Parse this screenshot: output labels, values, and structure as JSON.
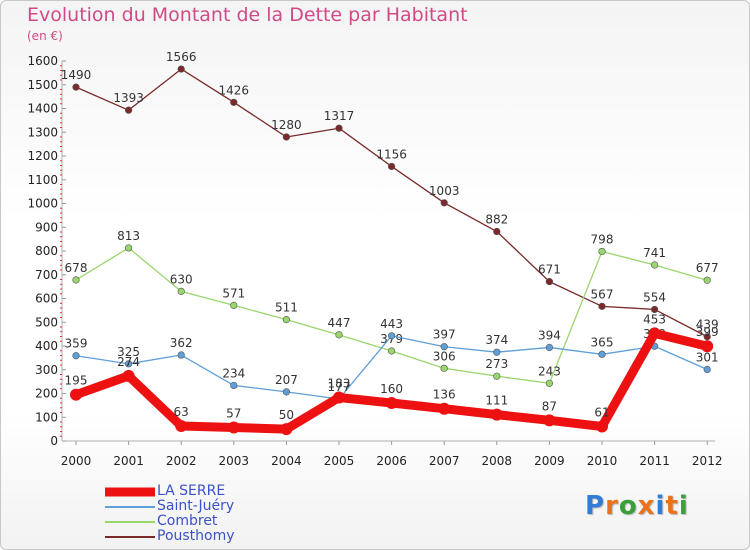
{
  "title": "Evolution du Montant de la Dette par Habitant",
  "subtitle": "(en €)",
  "logo": {
    "letters": [
      "P",
      "r",
      "o",
      "x",
      "i",
      "t",
      "i"
    ],
    "colors": [
      "#2f7fd6",
      "#e8731c",
      "#3b9f3b",
      "#e8731c",
      "#2f7fd6",
      "#e8731c",
      "#3b9f3b"
    ]
  },
  "chart_data": {
    "type": "line",
    "title": "Evolution du Montant de la Dette par Habitant",
    "ylabel": "(en €)",
    "x": [
      "2000",
      "2001",
      "2002",
      "2003",
      "2004",
      "2005",
      "2006",
      "2007",
      "2008",
      "2009",
      "2010",
      "2011",
      "2012"
    ],
    "ylim": [
      0,
      1600
    ],
    "yticks": [
      0,
      100,
      200,
      300,
      400,
      500,
      600,
      700,
      800,
      900,
      1000,
      1100,
      1200,
      1300,
      1400,
      1500,
      1600
    ],
    "grid": false,
    "legend_position": "bottom-left",
    "series": [
      {
        "name": "LA SERRE",
        "color": "#ee1111",
        "values": [
          195,
          274,
          63,
          57,
          50,
          183,
          160,
          136,
          111,
          87,
          61,
          453,
          399
        ],
        "labels": [
          "195",
          "274",
          "63",
          "57",
          "50",
          "183",
          "160",
          "136",
          "111",
          "87",
          "61",
          "453",
          "399"
        ]
      },
      {
        "name": "Saint-Juéry",
        "color": "#5f9fd8",
        "values": [
          359,
          325,
          362,
          234,
          207,
          177,
          443,
          397,
          374,
          394,
          365,
          399,
          301
        ],
        "labels": [
          "359",
          "325",
          "362",
          "234",
          "207",
          "177",
          "443",
          "397",
          "374",
          "394",
          "365",
          "399",
          "301"
        ]
      },
      {
        "name": "Combret",
        "color": "#99d66c",
        "values": [
          678,
          813,
          630,
          571,
          511,
          447,
          379,
          306,
          273,
          243,
          798,
          741,
          677
        ],
        "labels": [
          "678",
          "813",
          "630",
          "571",
          "511",
          "447",
          "379",
          "306",
          "273",
          "243",
          "798",
          "741",
          "677"
        ]
      },
      {
        "name": "Pousthomy",
        "color": "#7a2a2a",
        "values": [
          1490,
          1393,
          1566,
          1426,
          1280,
          1317,
          1156,
          1003,
          882,
          671,
          567,
          554,
          439
        ],
        "labels": [
          "1490",
          "1393",
          "1566",
          "1426",
          "1280",
          "1317",
          "1156",
          "1003",
          "882",
          "671",
          "567",
          "554",
          "439"
        ]
      }
    ]
  }
}
